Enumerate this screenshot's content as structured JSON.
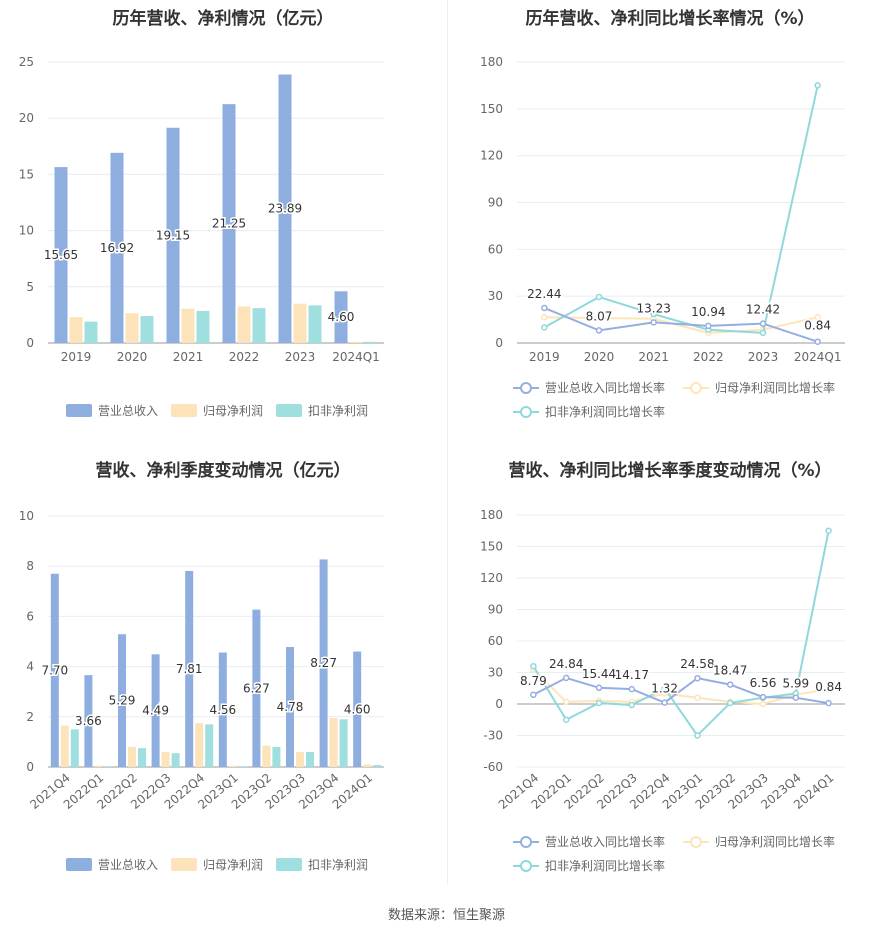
{
  "footer": "数据来源：恒生聚源",
  "colors": {
    "revenue": "#8eaee0",
    "net_profit": "#fde3ba",
    "deducted_profit": "#9fdfe0",
    "revenue_line": "#95aee0",
    "profit_line": "#fde5b8",
    "deducted_line": "#8fd8dc",
    "grid": "#e8ecf3",
    "axis": "#999999"
  },
  "panels": {
    "annual_values": {
      "title": "历年营收、净利情况（亿元）",
      "legend": [
        "营业总收入",
        "归母净利润",
        "扣非净利润"
      ]
    },
    "annual_growth": {
      "title": "历年营收、净利同比增长率情况（%）",
      "legend": [
        "营业总收入同比增长率",
        "归母净利润同比增长率",
        "扣非净利润同比增长率"
      ]
    },
    "quarterly_values": {
      "title": "营收、净利季度变动情况（亿元）",
      "legend": [
        "营业总收入",
        "归母净利润",
        "扣非净利润"
      ]
    },
    "quarterly_growth": {
      "title": "营收、净利同比增长率季度变动情况（%）",
      "legend": [
        "营业总收入同比增长率",
        "归母净利润同比增长率",
        "扣非净利润同比增长率"
      ]
    }
  },
  "chart_data": [
    {
      "type": "bar",
      "title": "历年营收、净利情况（亿元）",
      "categories": [
        "2019",
        "2020",
        "2021",
        "2022",
        "2023",
        "2024Q1"
      ],
      "ylim": [
        0,
        25
      ],
      "yticks": [
        0,
        5,
        10,
        15,
        20,
        25
      ],
      "series": [
        {
          "name": "营业总收入",
          "values": [
            15.65,
            16.92,
            19.15,
            21.25,
            23.89,
            4.6
          ],
          "labels": [
            "15.65",
            "16.92",
            "19.15",
            "21.25",
            "23.89",
            "4.60"
          ]
        },
        {
          "name": "归母净利润",
          "values": [
            2.3,
            2.65,
            3.05,
            3.25,
            3.5,
            0.1
          ]
        },
        {
          "name": "扣非净利润",
          "values": [
            1.9,
            2.4,
            2.85,
            3.1,
            3.35,
            0.1
          ]
        }
      ],
      "legend_position": "bottom"
    },
    {
      "type": "line",
      "title": "历年营收、净利同比增长率情况（%）",
      "categories": [
        "2019",
        "2020",
        "2021",
        "2022",
        "2023",
        "2024Q1"
      ],
      "ylim": [
        0,
        180
      ],
      "yticks": [
        0,
        30,
        60,
        90,
        120,
        150,
        180
      ],
      "series": [
        {
          "name": "营业总收入同比增长率",
          "values": [
            22.44,
            8.07,
            13.23,
            10.94,
            12.42,
            0.84
          ],
          "labels": [
            "22.44",
            "8.07",
            "13.23",
            "10.94",
            "12.42",
            "0.84"
          ]
        },
        {
          "name": "归母净利润同比增长率",
          "values": [
            16.5,
            16.0,
            15.5,
            6.5,
            8.5,
            16.5
          ]
        },
        {
          "name": "扣非净利润同比增长率",
          "values": [
            10.0,
            29.5,
            18.5,
            8.5,
            6.5,
            165.0
          ]
        }
      ],
      "legend_position": "bottom"
    },
    {
      "type": "bar",
      "title": "营收、净利季度变动情况（亿元）",
      "categories": [
        "2021Q4",
        "2022Q1",
        "2022Q2",
        "2022Q3",
        "2022Q4",
        "2023Q1",
        "2023Q2",
        "2023Q3",
        "2023Q4",
        "2024Q1"
      ],
      "ylim": [
        0,
        10
      ],
      "yticks": [
        0,
        2,
        4,
        6,
        8,
        10
      ],
      "series": [
        {
          "name": "营业总收入",
          "values": [
            7.7,
            3.66,
            5.29,
            4.49,
            7.81,
            4.56,
            6.27,
            4.78,
            8.27,
            4.6
          ],
          "labels": [
            "7.70",
            "3.66",
            "5.29",
            "4.49",
            "7.81",
            "4.56",
            "6.27",
            "4.78",
            "8.27",
            "4.60"
          ]
        },
        {
          "name": "归母净利润",
          "values": [
            1.65,
            0.05,
            0.8,
            0.6,
            1.75,
            0.05,
            0.85,
            0.6,
            1.95,
            0.1
          ]
        },
        {
          "name": "扣非净利润",
          "values": [
            1.5,
            0.03,
            0.75,
            0.55,
            1.7,
            0.03,
            0.8,
            0.6,
            1.9,
            0.08
          ]
        }
      ],
      "legend_position": "bottom"
    },
    {
      "type": "line",
      "title": "营收、净利同比增长率季度变动情况（%）",
      "categories": [
        "2021Q4",
        "2022Q1",
        "2022Q2",
        "2022Q3",
        "2022Q4",
        "2023Q1",
        "2023Q2",
        "2023Q3",
        "2023Q4",
        "2024Q1"
      ],
      "ylim": [
        -60,
        180
      ],
      "yticks": [
        -60,
        -30,
        0,
        30,
        60,
        90,
        120,
        150,
        180
      ],
      "series": [
        {
          "name": "营业总收入同比增长率",
          "values": [
            8.79,
            24.84,
            15.44,
            14.17,
            1.32,
            24.58,
            18.47,
            6.56,
            5.99,
            0.84
          ],
          "labels": [
            "8.79",
            "24.84",
            "15.44",
            "14.17",
            "1.32",
            "24.58",
            "18.47",
            "6.56",
            "5.99",
            "0.84"
          ]
        },
        {
          "name": "归母净利润同比增长率",
          "values": [
            33.0,
            2.0,
            3.0,
            2.0,
            10.0,
            6.0,
            2.0,
            0.0,
            9.0,
            14.0
          ]
        },
        {
          "name": "扣非净利润同比增长率",
          "values": [
            36.0,
            -15.0,
            1.0,
            -1.0,
            15.0,
            -30.0,
            1.0,
            6.0,
            10.0,
            165.0
          ]
        }
      ],
      "legend_position": "bottom"
    }
  ]
}
